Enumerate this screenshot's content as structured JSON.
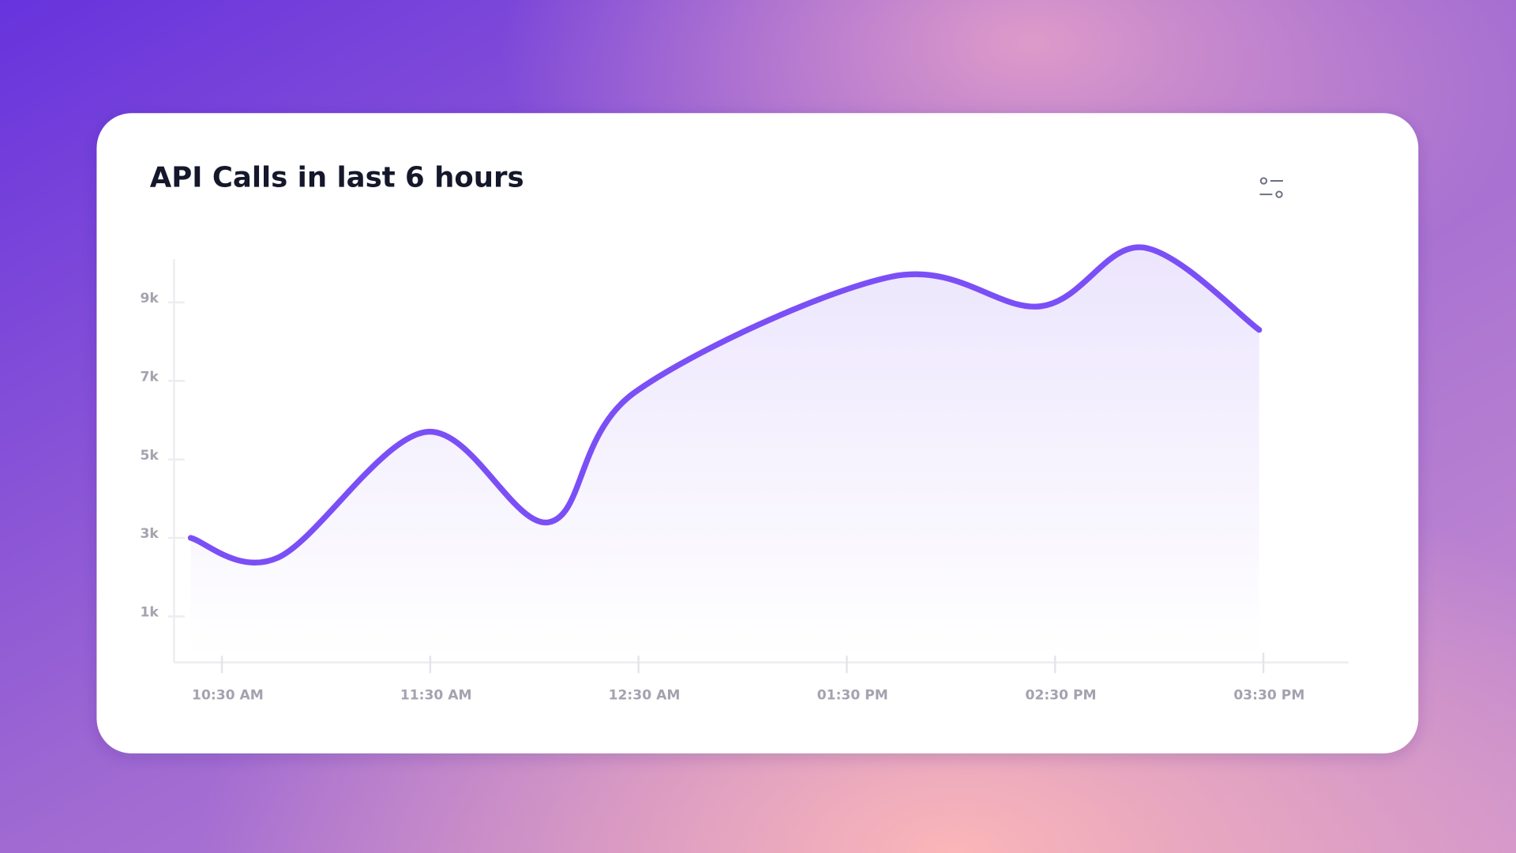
{
  "chart_data": {
    "type": "area",
    "title": "API Calls in last 6 hours",
    "x": [
      10.35,
      10.77,
      11.48,
      12.07,
      12.48,
      13.71,
      14.43,
      14.92,
      15.48
    ],
    "values": [
      3000,
      2500,
      5700,
      3400,
      6700,
      9650,
      8900,
      10400,
      8300
    ],
    "color": "#7b4ff6",
    "xlim": [
      10.27,
      15.91
    ],
    "xticks": [
      {
        "value": 10.5,
        "label": "10:30 AM"
      },
      {
        "value": 11.5,
        "label": "11:30 AM"
      },
      {
        "value": 12.5,
        "label": "12:30 AM"
      },
      {
        "value": 13.5,
        "label": "01:30 PM"
      },
      {
        "value": 14.5,
        "label": "02:30 PM"
      },
      {
        "value": 15.5,
        "label": "03:30 PM"
      }
    ],
    "ylim": [
      0,
      10100
    ],
    "yticks": [
      {
        "value": 1000,
        "label": "1k"
      },
      {
        "value": 3000,
        "label": "3k"
      },
      {
        "value": 5000,
        "label": "5k"
      },
      {
        "value": 7000,
        "label": "7k"
      },
      {
        "value": 9000,
        "label": "9k"
      }
    ],
    "grid": false
  }
}
